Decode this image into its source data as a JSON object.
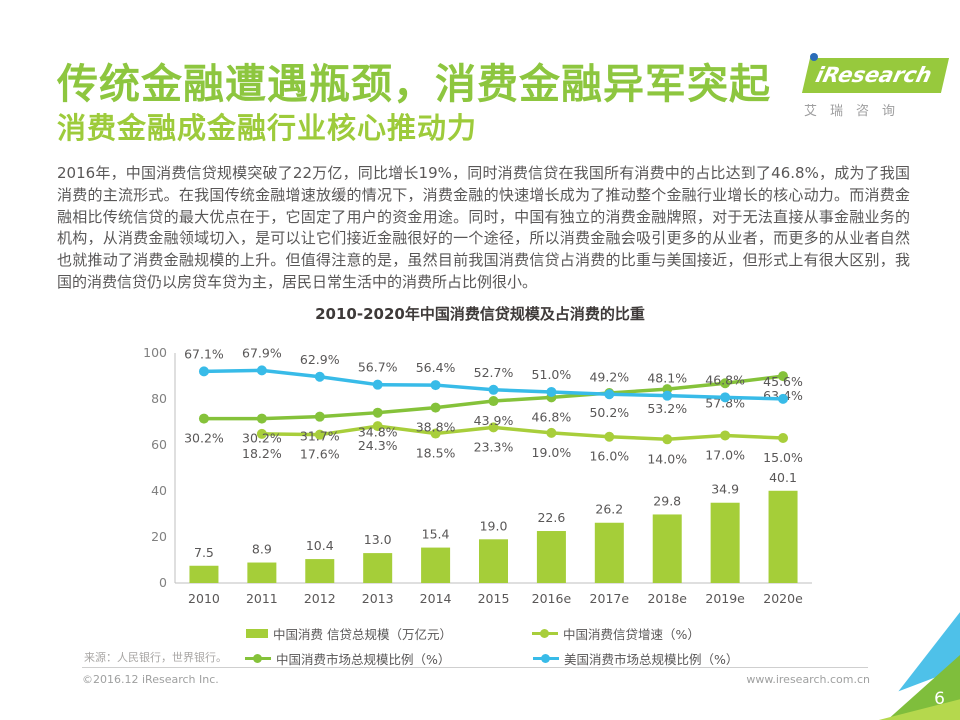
{
  "header": {
    "title": "传统金融遭遇瓶颈，消费金融异军突起",
    "subtitle": "消费金融成金融行业核心推动力",
    "logo": {
      "text": "iResearch",
      "subtext": "艾瑞咨询"
    }
  },
  "body": {
    "paragraph": "2016年，中国消费信贷规模突破了22万亿，同比增长19%，同时消费信贷在我国所有消费中的占比达到了46.8%，成为了我国消费的主流形式。在我国传统金融增速放缓的情况下，消费金融的快速增长成为了推动整个金融行业增长的核心动力。而消费金融相比传统信贷的最大优点在于，它固定了用户的资金用途。同时，中国有独立的消费金融牌照，对于无法直接从事金融业务的机构，从消费金融领域切入，是可以让它们接近金融很好的一个途径，所以消费金融会吸引更多的从业者，而更多的从业者自然也就推动了消费金融规模的上升。但值得注意的是，虽然目前我国消费信贷占消费的比重与美国接近，但形式上有很大区别，我国的消费信贷仍以房贷车贷为主，居民日常生活中的消费所占比例很小。"
  },
  "chart_data": {
    "type": "bar",
    "title": "2010-2020年中国消费信贷规模及占消费的比重",
    "categories": [
      "2010",
      "2011",
      "2012",
      "2013",
      "2014",
      "2015",
      "2016e",
      "2017e",
      "2018e",
      "2019e",
      "2020e"
    ],
    "ylim": [
      0,
      100
    ],
    "yticks": [
      0,
      20,
      40,
      60,
      80,
      100
    ],
    "grid": false,
    "legend_position": "bottom",
    "series": [
      {
        "name": "中国消费 信贷总规模（万亿元）",
        "type": "bar",
        "color": "#A5CE39",
        "values": [
          7.5,
          8.9,
          10.4,
          13.0,
          15.4,
          19.0,
          22.6,
          26.2,
          29.8,
          34.9,
          40.1
        ]
      },
      {
        "name": "中国消费信贷增速（%）",
        "type": "line",
        "color": "#A8CE3B",
        "values": [
          null,
          18.2,
          17.6,
          24.3,
          18.5,
          23.3,
          19.0,
          16.0,
          14.0,
          17.0,
          15.0
        ]
      },
      {
        "name": "中国消费市场总规模比例（%）",
        "type": "line",
        "color": "#85C23A",
        "values": [
          30.2,
          30.2,
          31.7,
          34.8,
          38.8,
          43.9,
          46.8,
          50.2,
          53.2,
          57.8,
          63.4
        ]
      },
      {
        "name": "美国消费市场总规模比例（%）",
        "type": "line",
        "color": "#38BBE8",
        "values": [
          67.1,
          67.9,
          62.9,
          56.7,
          56.4,
          52.7,
          51.0,
          49.2,
          48.1,
          46.8,
          45.6
        ]
      }
    ]
  },
  "source": "来源：人民银行，世界银行。",
  "footer": {
    "copyright": "©2016.12 iResearch Inc.",
    "website": "www.iresearch.com.cn",
    "page_number": "6"
  }
}
